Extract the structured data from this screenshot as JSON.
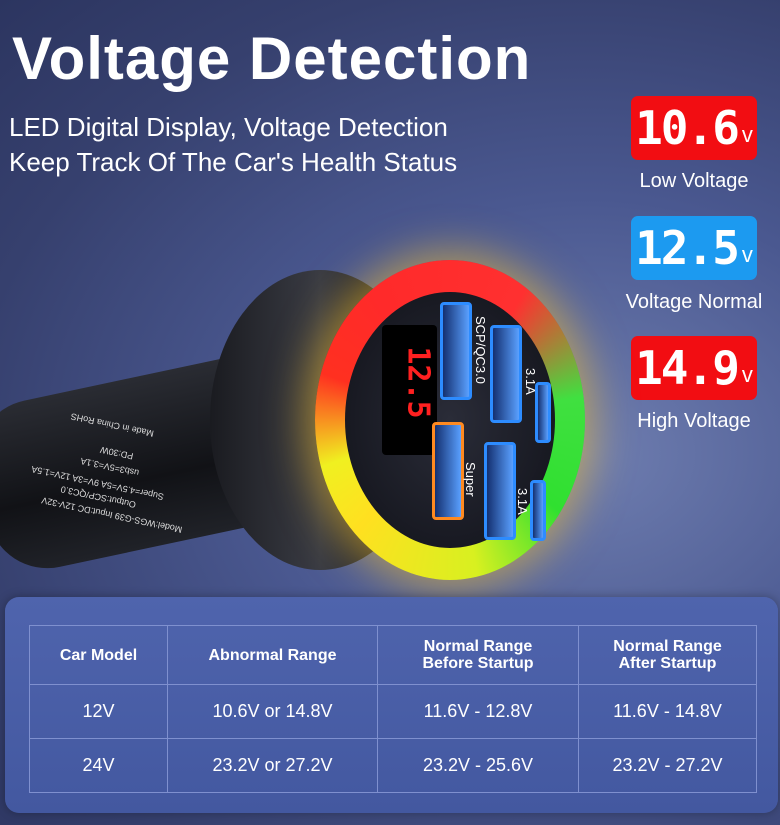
{
  "header": {
    "title": "Voltage Detection",
    "subtitle_lines": [
      "LED Digital Display, Voltage Detection",
      "Keep Track Of The Car's Health Status"
    ]
  },
  "indicators": [
    {
      "value": "10.6",
      "unit": "v",
      "label": "Low Voltage",
      "color": "#f20d12"
    },
    {
      "value": "12.5",
      "unit": "v",
      "label": "Voltage Normal",
      "color": "#1c9af0"
    },
    {
      "value": "14.9",
      "unit": "v",
      "label": "High Voltage",
      "color": "#f20d12"
    }
  ],
  "product": {
    "display_value": "12.5",
    "port_labels": [
      "SCP/QC3.0",
      "3.1A",
      "Super",
      "3.1A"
    ],
    "printed_text": [
      "Model:WGS-G39  Input:DC 12V-32V",
      "Output:SCP/QC3.0",
      "Super=4.5V=5A 9V=3A 12V=1.5A",
      "usb3=5V=3.1A",
      "PD:30W",
      "Made in China  RoHS"
    ],
    "ring_colors": [
      "#ff2a2a",
      "#30e030",
      "#ffe020"
    ]
  },
  "table": {
    "headers": [
      "Car Model",
      "Abnormal Range",
      "Normal Range\nBefore Startup",
      "Normal Range\nAfter Startup"
    ],
    "rows": [
      [
        "12V",
        "10.6V or 14.8V",
        "11.6V - 12.8V",
        "11.6V - 14.8V"
      ],
      [
        "24V",
        "23.2V or 27.2V",
        "23.2V - 25.6V",
        "23.2V - 27.2V"
      ]
    ]
  }
}
